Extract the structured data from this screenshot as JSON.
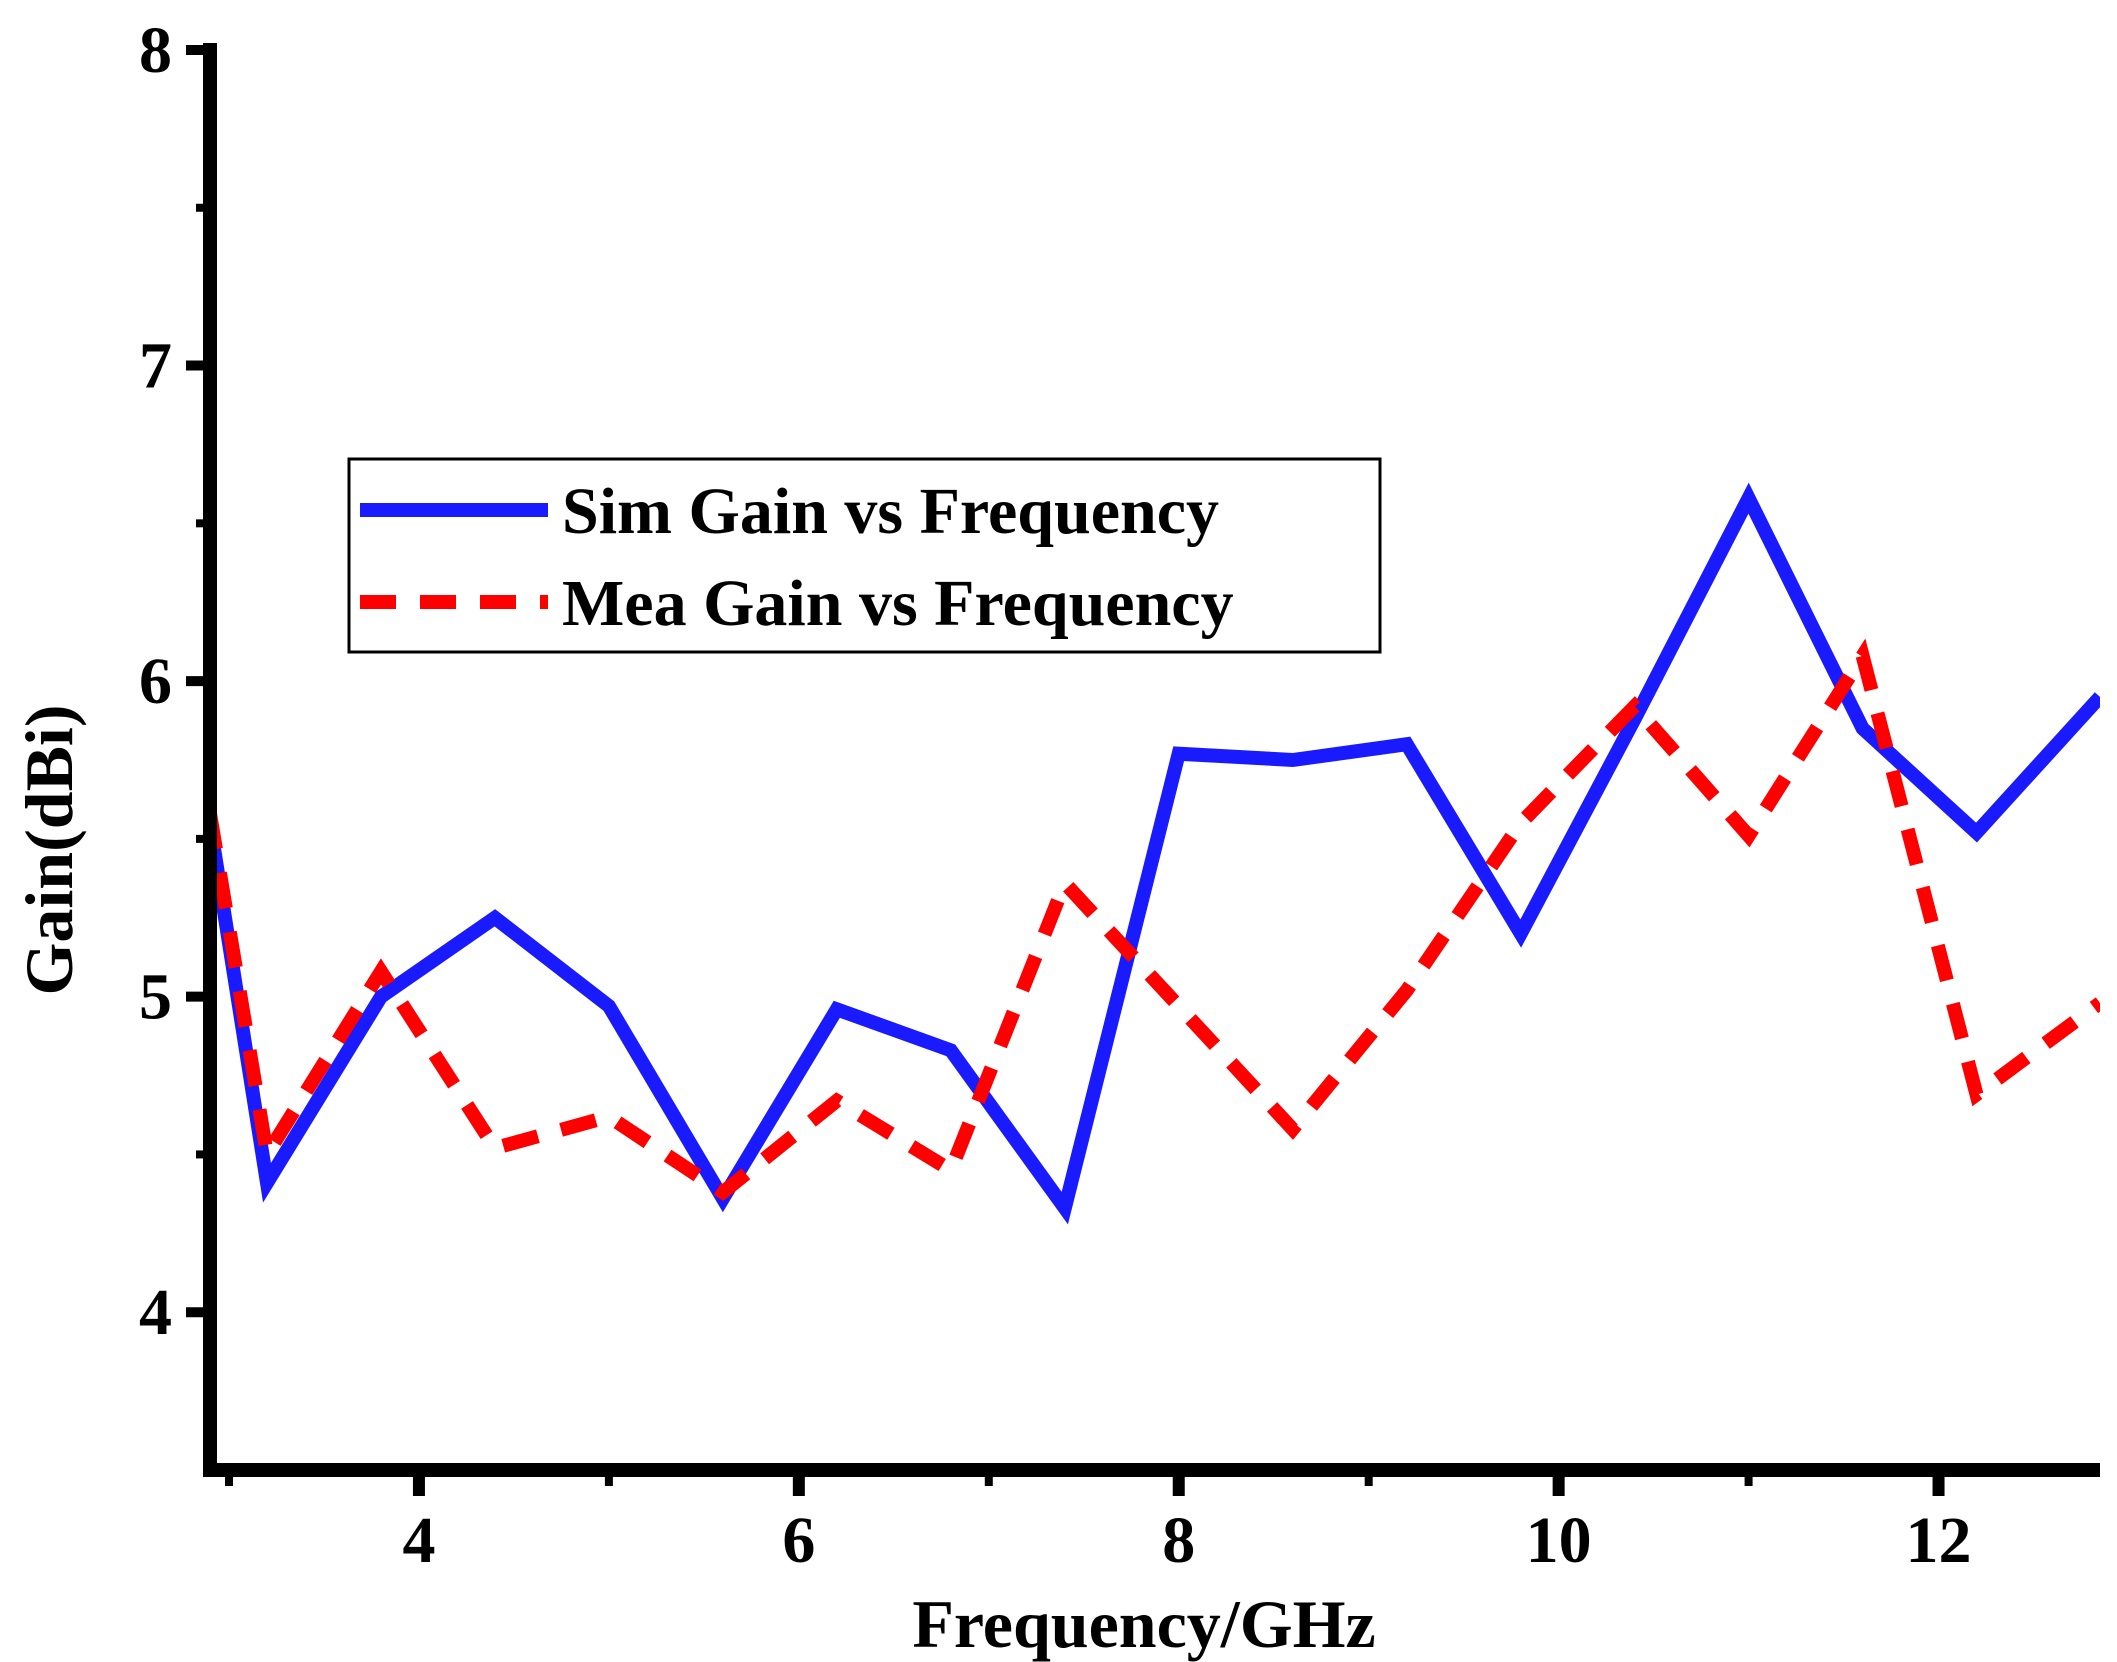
{
  "chart_data": {
    "type": "line",
    "title": "",
    "xlabel": "Frequency/GHz",
    "ylabel": "Gain(dBi)",
    "xlim": [
      2.9,
      12.85
    ],
    "ylim": [
      3.5,
      8
    ],
    "xticks": [
      4,
      6,
      8,
      10,
      12
    ],
    "xtick_labels": [
      "4",
      "6",
      "8",
      "10",
      "12"
    ],
    "xminor": [
      3,
      5,
      7,
      9,
      11
    ],
    "yticks": [
      4,
      5,
      6,
      7,
      8
    ],
    "ytick_labels": [
      "4",
      "5",
      "6",
      "7",
      "8"
    ],
    "yminor": [
      4.5,
      5.5,
      6.5,
      7.5
    ],
    "grid": false,
    "legend_position": "upper-left",
    "series": [
      {
        "name": "Sim Gain vs Frequency",
        "style": "solid",
        "color": "#1a1aff",
        "x": [
          2.9,
          3.2,
          3.8,
          4.4,
          5.0,
          5.6,
          6.2,
          6.8,
          7.4,
          8.0,
          8.6,
          9.2,
          9.8,
          10.4,
          11.0,
          11.6,
          12.2,
          12.85
        ],
        "y": [
          5.55,
          4.41,
          5.0,
          5.25,
          4.97,
          4.36,
          4.96,
          4.83,
          4.33,
          5.77,
          5.75,
          5.8,
          5.2,
          5.88,
          6.58,
          5.85,
          5.52,
          5.95
        ]
      },
      {
        "name": "Mea Gain vs Frequency",
        "style": "dashed",
        "color": "#ff0000",
        "x": [
          2.9,
          3.2,
          3.8,
          4.4,
          5.0,
          5.6,
          6.2,
          6.8,
          7.4,
          8.0,
          8.6,
          9.2,
          9.8,
          10.4,
          11.0,
          11.6,
          12.2,
          12.85
        ],
        "y": [
          5.58,
          4.5,
          5.08,
          4.52,
          4.62,
          4.38,
          4.67,
          4.45,
          5.36,
          4.97,
          4.58,
          5.02,
          5.55,
          5.92,
          5.51,
          6.08,
          4.69,
          4.98
        ]
      }
    ]
  }
}
